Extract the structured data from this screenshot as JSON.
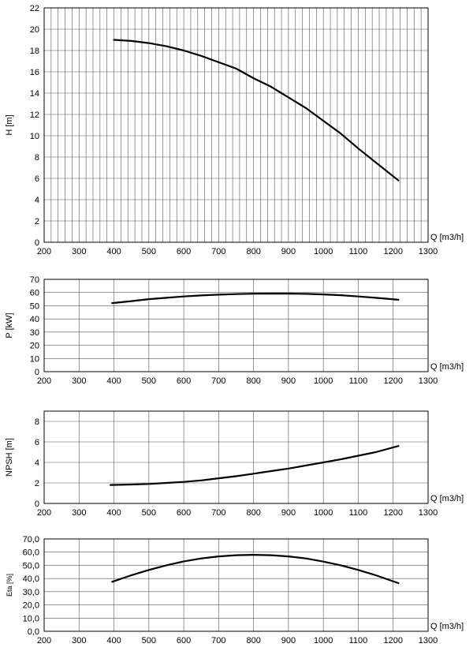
{
  "chart_data": [
    {
      "type": "line",
      "ylabel": "H [m]",
      "xlabel": "Q [m3/h]",
      "xlim": [
        200,
        1300
      ],
      "ylim": [
        0,
        22
      ],
      "x_major_step": 100,
      "x_minor_step": 20,
      "y_step": 2,
      "x_ticks": [
        "200",
        "300",
        "400",
        "500",
        "600",
        "700",
        "800",
        "900",
        "1000",
        "1100",
        "1200",
        "1300"
      ],
      "y_ticks": [
        "0",
        "2",
        "4",
        "6",
        "8",
        "10",
        "12",
        "14",
        "16",
        "18",
        "20",
        "22"
      ],
      "grid": true,
      "x": [
        400,
        450,
        500,
        550,
        600,
        650,
        700,
        750,
        800,
        850,
        900,
        950,
        1000,
        1050,
        1100,
        1150,
        1215
      ],
      "y": [
        19.0,
        18.9,
        18.7,
        18.4,
        18.0,
        17.5,
        16.9,
        16.3,
        15.4,
        14.6,
        13.6,
        12.6,
        11.4,
        10.2,
        8.8,
        7.5,
        5.8
      ]
    },
    {
      "type": "line",
      "ylabel": "P [kW]",
      "xlabel": "Q [m3/h]",
      "xlim": [
        200,
        1300
      ],
      "ylim": [
        0,
        70
      ],
      "x_major_step": 100,
      "x_minor_step": 100,
      "y_step": 10,
      "x_ticks": [
        "200",
        "300",
        "400",
        "500",
        "600",
        "700",
        "800",
        "900",
        "1000",
        "1100",
        "1200",
        "1300"
      ],
      "y_ticks": [
        "0",
        "10",
        "20",
        "30",
        "40",
        "50",
        "60",
        "70"
      ],
      "grid": true,
      "x": [
        395,
        450,
        500,
        550,
        600,
        650,
        700,
        750,
        800,
        850,
        900,
        950,
        1000,
        1050,
        1100,
        1150,
        1215
      ],
      "y": [
        52,
        53.5,
        55,
        56,
        57,
        57.8,
        58.4,
        58.8,
        59.1,
        59.2,
        59.2,
        59,
        58.6,
        58,
        57,
        56,
        54.5
      ]
    },
    {
      "type": "line",
      "ylabel": "NPSH [m]",
      "xlabel": "Q [m3/h]",
      "xlim": [
        200,
        1300
      ],
      "ylim": [
        0,
        9
      ],
      "x_major_step": 100,
      "x_minor_step": 100,
      "y_step": 2,
      "x_ticks": [
        "200",
        "300",
        "400",
        "500",
        "600",
        "700",
        "800",
        "900",
        "1000",
        "1100",
        "1200",
        "1300"
      ],
      "y_ticks": [
        "0",
        "2",
        "4",
        "6",
        "8"
      ],
      "grid": true,
      "x": [
        390,
        450,
        500,
        550,
        600,
        650,
        700,
        750,
        800,
        850,
        900,
        950,
        1000,
        1050,
        1100,
        1150,
        1215
      ],
      "y": [
        1.8,
        1.85,
        1.9,
        2.0,
        2.1,
        2.25,
        2.45,
        2.65,
        2.9,
        3.15,
        3.4,
        3.7,
        4.0,
        4.3,
        4.65,
        5.0,
        5.6
      ]
    },
    {
      "type": "line",
      "ylabel": "Eta [%]",
      "xlabel": "Q [m3/h]",
      "xlim": [
        200,
        1300
      ],
      "ylim": [
        0,
        70
      ],
      "x_major_step": 100,
      "x_minor_step": 100,
      "y_step": 10,
      "x_ticks": [
        "200",
        "300",
        "400",
        "500",
        "600",
        "700",
        "800",
        "900",
        "1000",
        "1100",
        "1200",
        "1300"
      ],
      "y_ticks": [
        "0,0",
        "10,0",
        "20,0",
        "30,0",
        "40,0",
        "50,0",
        "60,0",
        "70,0"
      ],
      "grid": true,
      "x": [
        395,
        450,
        500,
        550,
        600,
        650,
        700,
        750,
        800,
        850,
        900,
        950,
        1000,
        1050,
        1100,
        1150,
        1215
      ],
      "y": [
        37.5,
        42.5,
        46.5,
        50,
        53,
        55.2,
        56.8,
        57.7,
        58,
        57.7,
        56.8,
        55.2,
        52.8,
        50,
        46.5,
        42.5,
        36.5
      ]
    }
  ]
}
